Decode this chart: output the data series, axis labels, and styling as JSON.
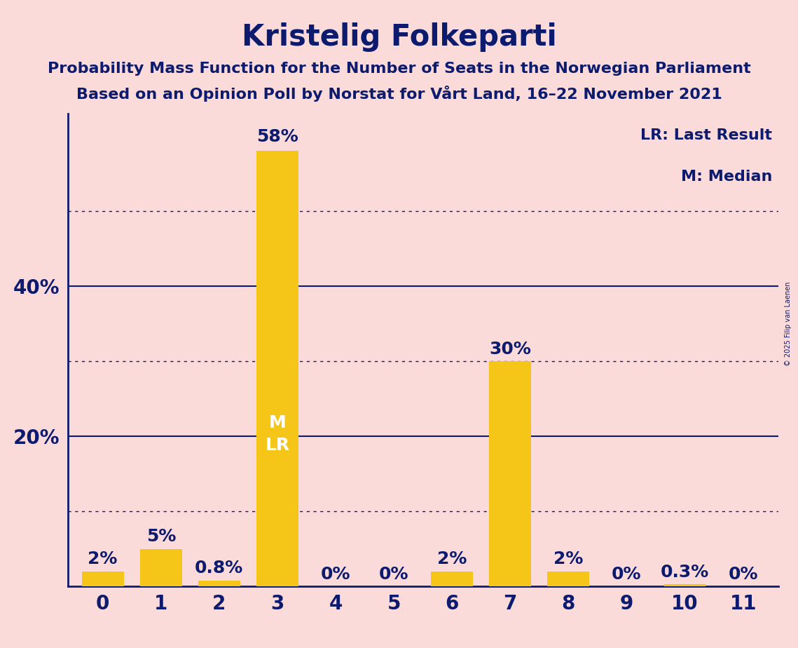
{
  "title": "Kristelig Folkeparti",
  "subtitle1": "Probability Mass Function for the Number of Seats in the Norwegian Parliament",
  "subtitle2": "Based on an Opinion Poll by Norstat for Vårt Land, 16–22 November 2021",
  "copyright": "© 2025 Filip van Laenen",
  "categories": [
    0,
    1,
    2,
    3,
    4,
    5,
    6,
    7,
    8,
    9,
    10,
    11
  ],
  "values": [
    2,
    5,
    0.8,
    58,
    0,
    0,
    2,
    30,
    2,
    0,
    0.3,
    0
  ],
  "bar_color": "#F5C518",
  "background_color": "#FBDADA",
  "title_color": "#0D1B6E",
  "subtitle_color": "#0D1B6E",
  "bar_label_color_outside": "#0D1B6E",
  "bar_label_color_inside": "#FFFFFF",
  "axis_color": "#0D1B6E",
  "grid_solid_color": "#0D1B6E",
  "grid_dotted_color": "#0D1B6E",
  "legend_text": [
    "LR: Last Result",
    "M: Median"
  ],
  "legend_color": "#0D1B6E",
  "median_seat": 3,
  "last_result_seat": 3,
  "inside_label_seats": [
    3
  ],
  "ylim": [
    0,
    63
  ],
  "solid_yticks": [
    20,
    40
  ],
  "dotted_yticks": [
    10,
    30,
    50
  ],
  "title_fontsize": 30,
  "subtitle_fontsize": 16,
  "bar_label_fontsize": 18,
  "inside_label_fontsize": 18,
  "tick_fontsize": 20,
  "legend_fontsize": 16
}
